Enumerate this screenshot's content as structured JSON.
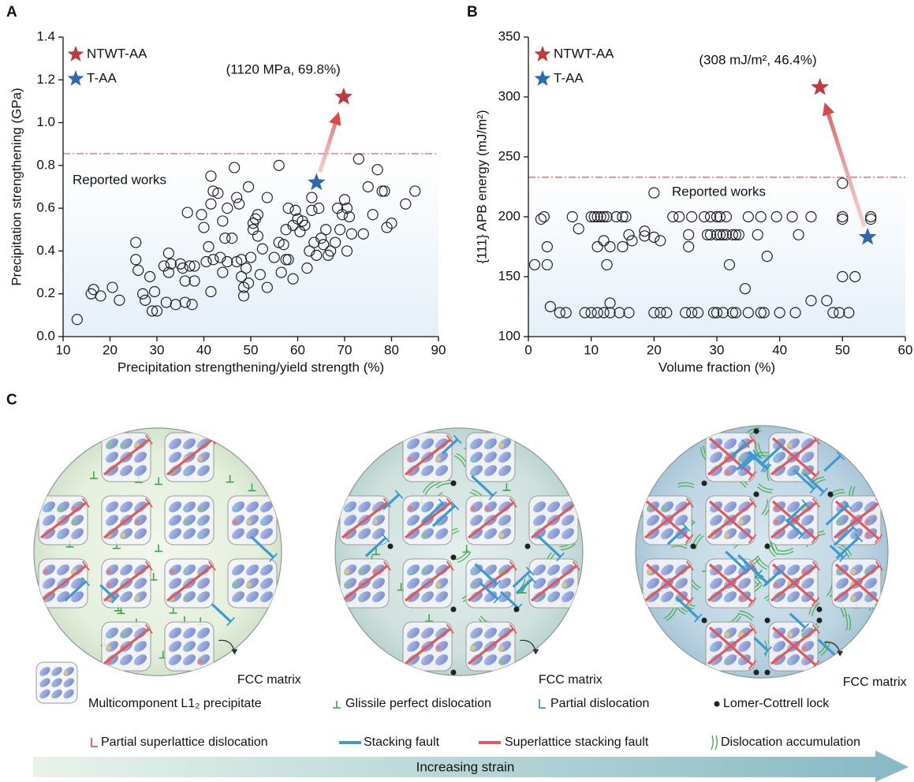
{
  "chart_data": [
    {
      "type": "scatter",
      "panel": "A",
      "x_label": "Precipitation strengthening/yield strength (%)",
      "y_label": "Precipitation strengthening (GPa)",
      "xlim": [
        10,
        90
      ],
      "xticks": [
        10,
        20,
        30,
        40,
        50,
        60,
        70,
        80,
        90
      ],
      "ylim": [
        0,
        1.4
      ],
      "yticks": [
        {
          "value": 0,
          "label": "0.0"
        },
        0.2,
        0.4,
        0.6,
        0.8,
        {
          "value": 1,
          "label": "1.0"
        },
        1.2,
        1.4
      ],
      "threshold": 0.855,
      "annotations": [
        "Reported works",
        "(1120 MPa, 69.8%)"
      ],
      "reported": {
        "x": [
          13,
          16,
          16.5,
          18,
          20.5,
          22,
          25.5,
          25.5,
          26,
          27,
          27.5,
          28.5,
          29,
          29.5,
          30,
          31.5,
          32,
          32.5,
          32.5,
          33,
          34,
          35,
          35.5,
          36,
          36,
          36.5,
          37,
          37.5,
          38,
          38,
          39.5,
          40,
          40.5,
          41,
          41.5,
          41.5,
          41.5,
          42,
          42,
          43,
          43.5,
          44,
          44,
          44.5,
          45,
          45,
          46,
          46.5,
          47,
          47,
          47.5,
          48,
          48,
          48.5,
          48.5,
          49,
          49.5,
          49.5,
          50,
          50.5,
          50.5,
          51,
          51.5,
          51.5,
          52,
          52.5,
          53.5,
          53.5,
          55,
          56,
          56,
          56.5,
          57,
          57.5,
          57.5,
          58,
          58,
          59,
          59,
          59.5,
          60,
          60.5,
          61,
          61.5,
          62,
          62.5,
          63,
          63,
          63.5,
          64,
          64.5,
          65,
          65.5,
          66,
          66.5,
          67,
          68,
          68.5,
          69,
          69.5,
          70,
          70.5,
          70.5,
          71,
          71.5,
          73,
          74,
          75,
          76,
          77,
          78,
          78.5,
          79,
          80,
          83,
          85
        ],
        "values": [
          0.08,
          0.2,
          0.22,
          0.19,
          0.23,
          0.17,
          0.44,
          0.36,
          0.31,
          0.2,
          0.17,
          0.28,
          0.12,
          0.21,
          0.12,
          0.33,
          0.16,
          0.39,
          0.3,
          0.34,
          0.15,
          0.34,
          0.32,
          0.16,
          0.26,
          0.58,
          0.33,
          0.15,
          0.26,
          0.33,
          0.57,
          0.51,
          0.35,
          0.42,
          0.75,
          0.62,
          0.21,
          0.68,
          0.36,
          0.67,
          0.37,
          0.54,
          0.3,
          0.46,
          0.35,
          0.6,
          0.46,
          0.79,
          0.65,
          0.35,
          0.62,
          0.28,
          0.36,
          0.19,
          0.23,
          0.32,
          0.7,
          0.25,
          0.37,
          0.5,
          0.53,
          0.55,
          0.57,
          0.47,
          0.29,
          0.41,
          0.65,
          0.23,
          0.37,
          0.8,
          0.44,
          0.3,
          0.43,
          0.36,
          0.5,
          0.6,
          0.36,
          0.52,
          0.27,
          0.59,
          0.55,
          0.49,
          0.54,
          0.52,
          0.32,
          0.4,
          0.65,
          0.59,
          0.44,
          0.38,
          0.6,
          0.46,
          0.43,
          0.5,
          0.38,
          0.4,
          0.44,
          0.6,
          0.5,
          0.57,
          0.64,
          0.4,
          0.6,
          0.56,
          0.48,
          0.83,
          0.48,
          0.7,
          0.57,
          0.78,
          0.68,
          0.68,
          0.51,
          0.53,
          0.62,
          0.68
        ]
      },
      "series": [
        {
          "name": "NTWT-AA",
          "color": "#bf3a3c",
          "x": [
            69.8
          ],
          "values": [
            1.12
          ]
        },
        {
          "name": "T-AA",
          "color": "#2f68b0",
          "x": [
            64
          ],
          "values": [
            0.72
          ]
        }
      ]
    },
    {
      "type": "scatter",
      "panel": "B",
      "x_label": "Volume fraction (%)",
      "y_label": "{111} APB energy (mJ/m²)",
      "xlim": [
        0,
        60
      ],
      "xticks": [
        0,
        10,
        20,
        30,
        40,
        50,
        60
      ],
      "ylim": [
        100,
        350
      ],
      "yticks": [
        100,
        150,
        200,
        250,
        300,
        350
      ],
      "threshold": 233,
      "annotations": [
        "Reported works",
        "(308 mJ/m², 46.4%)"
      ],
      "reported": {
        "x": [
          1,
          2,
          2.5,
          3,
          3,
          3.5,
          5,
          6,
          7,
          8,
          9,
          10,
          10,
          10.5,
          11,
          11,
          11,
          11.5,
          12,
          12,
          12,
          12.5,
          12.5,
          13,
          13,
          13,
          14,
          14.5,
          15,
          15,
          15.5,
          16,
          16,
          16.5,
          18.5,
          18.5,
          20,
          20,
          20,
          21,
          21,
          22,
          23,
          24,
          25,
          25.5,
          25.5,
          26,
          26,
          27,
          28,
          28.5,
          29,
          29,
          29.5,
          30,
          30,
          30,
          30.5,
          30.5,
          31,
          31,
          31.5,
          31.5,
          32,
          32.5,
          32.5,
          33,
          33,
          33.5,
          34.5,
          35,
          35,
          36.5,
          37,
          37,
          37.5,
          38,
          39.5,
          40,
          42,
          42.5,
          43,
          45,
          45,
          47.5,
          48.5,
          49.5,
          50,
          50,
          50,
          50,
          51,
          52,
          54.5,
          54.5
        ],
        "values": [
          160,
          198,
          200,
          160,
          175,
          125,
          120,
          120,
          200,
          190,
          120,
          200,
          120,
          200,
          175,
          200,
          120,
          200,
          180,
          120,
          200,
          160,
          200,
          175,
          128,
          120,
          200,
          120,
          200,
          175,
          200,
          185,
          120,
          180,
          188,
          184,
          220,
          183,
          120,
          180,
          120,
          120,
          200,
          200,
          120,
          175,
          185,
          120,
          200,
          120,
          200,
          185,
          185,
          200,
          120,
          200,
          185,
          120,
          185,
          200,
          120,
          185,
          200,
          185,
          160,
          120,
          185,
          185,
          120,
          185,
          140,
          120,
          200,
          185,
          200,
          120,
          120,
          167,
          200,
          120,
          200,
          120,
          185,
          200,
          130,
          130,
          120,
          120,
          228,
          200,
          198,
          150,
          120,
          150,
          200,
          198
        ]
      },
      "series": [
        {
          "name": "NTWT-AA",
          "color": "#bf3a3c",
          "x": [
            46.4
          ],
          "values": [
            308
          ]
        },
        {
          "name": "T-AA",
          "color": "#2f68b0",
          "x": [
            54
          ],
          "values": [
            183
          ]
        }
      ]
    }
  ],
  "diagram": {
    "panel": "C",
    "matrix_labels": [
      "FCC matrix",
      "FCC matrix",
      "FCC matrix"
    ],
    "legend": [
      "Multicomponent L1₂ precipitate",
      "Glissile perfect dislocation",
      "Partial dislocation",
      "Lomer-Cottrell lock",
      "Partial superlattice dislocation",
      "Stacking fault",
      "Superlattice stacking fault",
      "Dislocation accumulation"
    ],
    "arrow_label": "Increasing strain"
  }
}
